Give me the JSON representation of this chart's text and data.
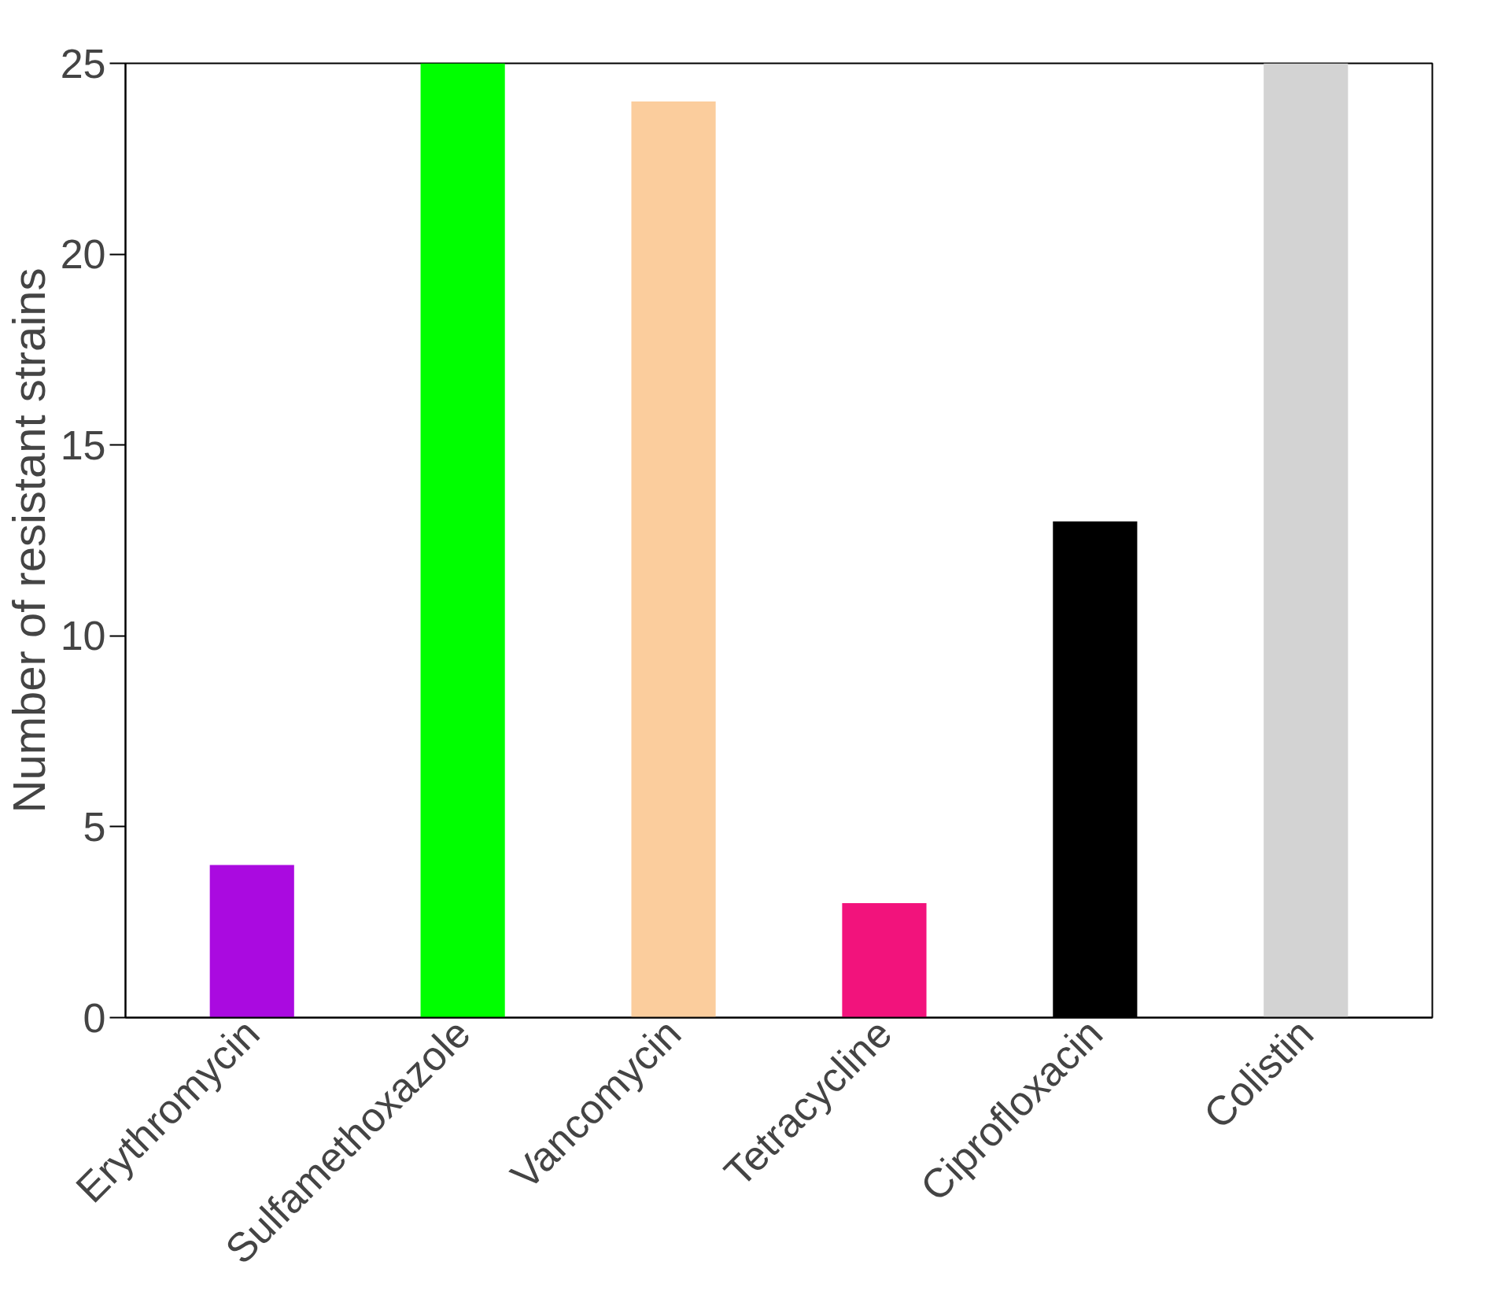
{
  "chart_data": {
    "type": "bar",
    "ylabel": "Number of resistant strains",
    "categories": [
      "Erythromycin",
      "Sulfamethoxazole",
      "Vancomycin",
      "Tetracycline",
      "Ciprofloxacin",
      "Colistin"
    ],
    "values": [
      4,
      25,
      24,
      3,
      13,
      25
    ],
    "colors": [
      "#aa0ae0",
      "#00ff00",
      "#fbcd9d",
      "#f2137c",
      "#000000",
      "#d3d3d3"
    ],
    "ylim": [
      0,
      25
    ],
    "yticks": [
      0,
      5,
      10,
      15,
      20,
      25
    ],
    "grid": false
  }
}
